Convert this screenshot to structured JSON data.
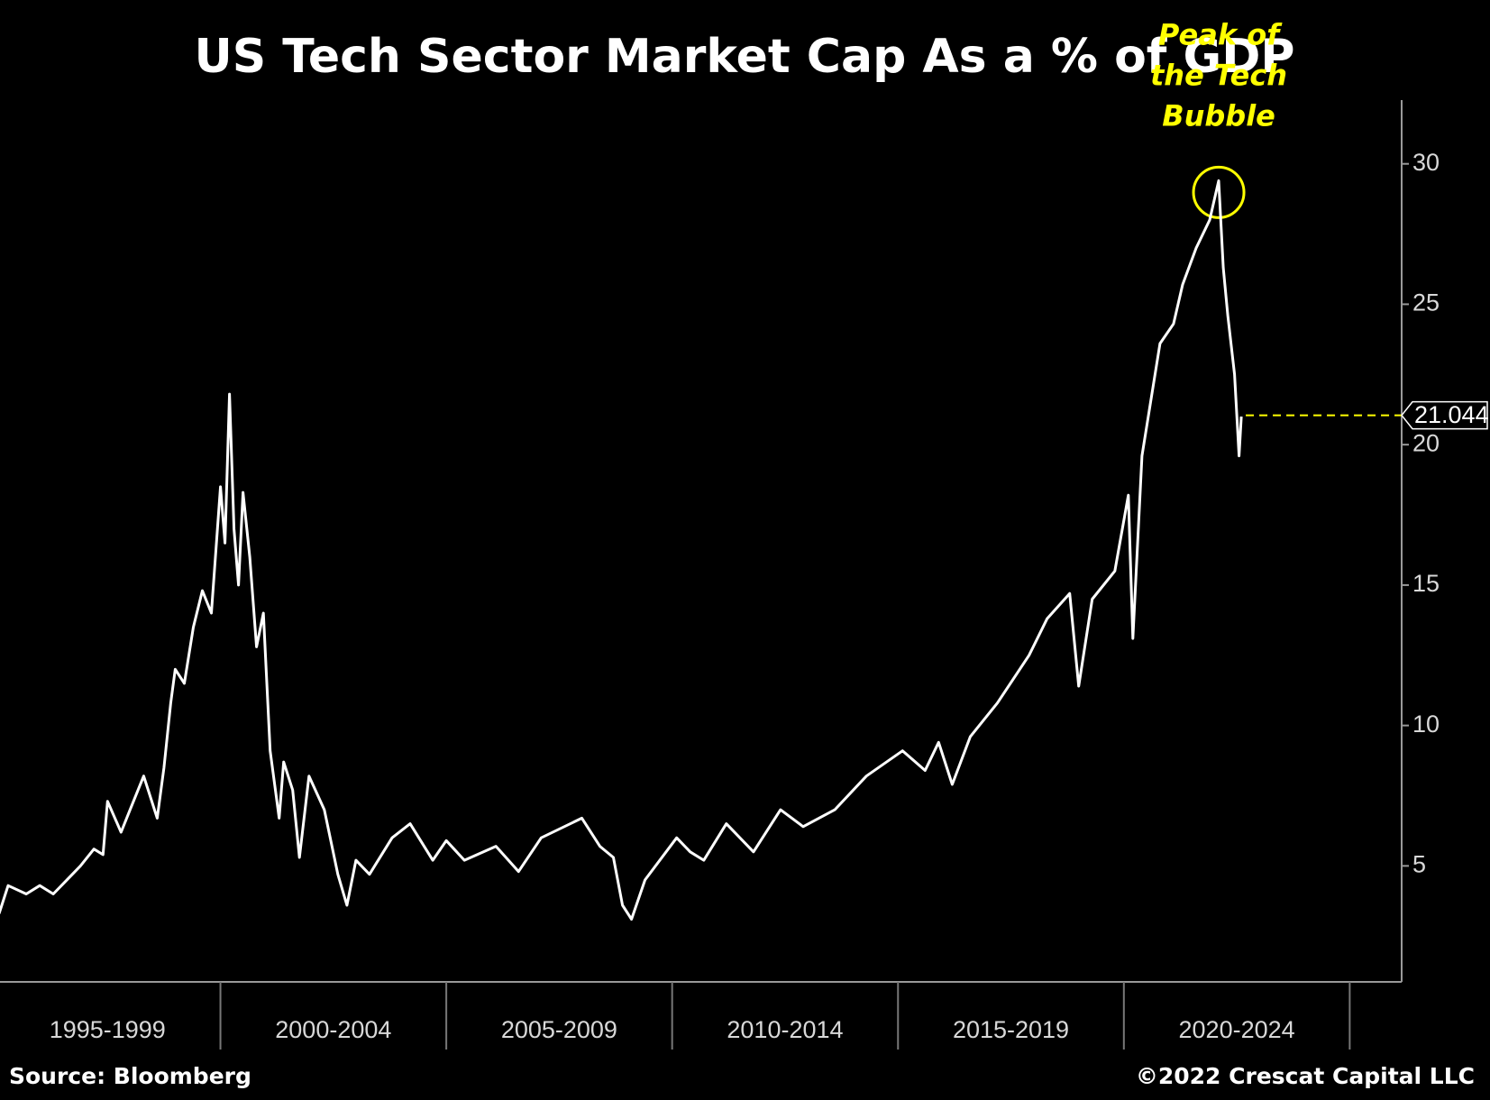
{
  "chart_data": {
    "type": "line",
    "title": "US Tech Sector Market Cap As a % of GDP",
    "x": [
      1995.1,
      1995.3,
      1995.7,
      1996.0,
      1996.3,
      1996.6,
      1996.9,
      1997.2,
      1997.4,
      1997.5,
      1997.8,
      1998.0,
      1998.3,
      1998.6,
      1998.75,
      1998.9,
      1999.0,
      1999.2,
      1999.4,
      1999.6,
      1999.8,
      2000.0,
      2000.1,
      2000.2,
      2000.3,
      2000.4,
      2000.5,
      2000.65,
      2000.8,
      2000.95,
      2001.1,
      2001.3,
      2001.4,
      2001.6,
      2001.75,
      2001.96,
      2002.3,
      2002.6,
      2002.8,
      2003.0,
      2003.3,
      2003.8,
      2004.2,
      2004.7,
      2005.0,
      2005.4,
      2006.1,
      2006.6,
      2007.1,
      2008.0,
      2008.4,
      2008.7,
      2008.9,
      2009.1,
      2009.4,
      2010.1,
      2010.4,
      2010.7,
      2011.2,
      2011.8,
      2012.4,
      2012.9,
      2013.6,
      2014.3,
      2015.1,
      2015.6,
      2015.9,
      2016.2,
      2016.6,
      2017.2,
      2017.9,
      2018.3,
      2018.8,
      2019.0,
      2019.3,
      2019.8,
      2020.1,
      2020.2,
      2020.4,
      2020.6,
      2020.8,
      2021.1,
      2021.3,
      2021.6,
      2021.9,
      2022.1,
      2022.2,
      2022.3,
      2022.45,
      2022.55,
      2022.6
    ],
    "values": [
      3.3,
      4.3,
      4.0,
      4.3,
      4.0,
      4.5,
      5.0,
      5.6,
      5.4,
      7.3,
      6.2,
      7.0,
      8.2,
      6.7,
      8.5,
      10.8,
      12.0,
      11.5,
      13.5,
      14.8,
      14.0,
      18.5,
      16.5,
      21.8,
      17.0,
      15.0,
      18.3,
      16.0,
      12.8,
      14.0,
      9.1,
      6.7,
      8.7,
      7.7,
      5.3,
      8.2,
      7.0,
      4.7,
      3.6,
      5.2,
      4.7,
      6.0,
      6.5,
      5.2,
      5.9,
      5.2,
      5.7,
      4.8,
      6.0,
      6.7,
      5.7,
      5.3,
      3.6,
      3.1,
      4.5,
      6.0,
      5.5,
      5.2,
      6.5,
      5.5,
      7.0,
      6.4,
      7.0,
      8.2,
      9.1,
      8.4,
      9.4,
      7.9,
      9.6,
      10.8,
      12.5,
      13.8,
      14.7,
      11.4,
      14.5,
      15.5,
      18.2,
      13.1,
      19.6,
      21.6,
      23.6,
      24.3,
      25.7,
      27.0,
      28.0,
      29.4,
      26.3,
      24.6,
      22.5,
      19.6,
      21.0
    ],
    "color": "#ffffff",
    "xlim": [
      1995.12,
      2026.15
    ],
    "xticks": [
      2000,
      2005,
      2010,
      2015,
      2020,
      2025
    ],
    "x_period_labels": [
      "1995-1999",
      "2000-2004",
      "2005-2009",
      "2010-2014",
      "2015-2019",
      "2020-2024"
    ],
    "ylim": [
      0.87,
      32.27
    ],
    "yticks": [
      5,
      10,
      15,
      20,
      25,
      30
    ],
    "y_axis_side": "right",
    "reference_line": {
      "value": 21.044,
      "color": "#ffff00"
    },
    "annotation": {
      "lines": [
        "Peak of",
        "the Tech",
        "Bubble"
      ],
      "color": "#ffff00"
    },
    "source": "Source: Bloomberg",
    "copyright": "©2022 Crescat Capital LLC"
  }
}
